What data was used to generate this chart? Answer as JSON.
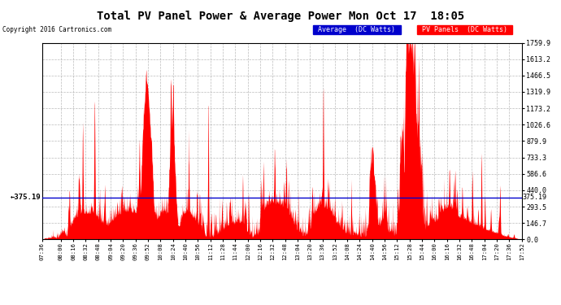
{
  "title": "Total PV Panel Power & Average Power Mon Oct 17  18:05",
  "copyright": "Copyright 2016 Cartronics.com",
  "legend_avg": "Average  (DC Watts)",
  "legend_pv": "PV Panels  (DC Watts)",
  "avg_value": 375.19,
  "y_max": 1759.9,
  "y_ticks": [
    0.0,
    146.7,
    293.5,
    440.0,
    586.6,
    733.3,
    879.9,
    1026.6,
    1173.2,
    1319.9,
    1466.5,
    1613.2,
    1759.9
  ],
  "x_labels": [
    "07:36",
    "08:00",
    "08:16",
    "08:32",
    "08:48",
    "09:04",
    "09:20",
    "09:36",
    "09:52",
    "10:08",
    "10:24",
    "10:40",
    "10:56",
    "11:12",
    "11:28",
    "11:44",
    "12:00",
    "12:16",
    "12:32",
    "12:48",
    "13:04",
    "13:20",
    "13:36",
    "13:52",
    "14:08",
    "14:24",
    "14:40",
    "14:56",
    "15:12",
    "15:28",
    "15:44",
    "16:00",
    "16:16",
    "16:32",
    "16:48",
    "17:04",
    "17:20",
    "17:36",
    "17:52"
  ],
  "bg_color": "#ffffff",
  "plot_bg_color": "#ffffff",
  "fill_color": "#ff0000",
  "avg_line_color": "#0000cc",
  "grid_color": "#aaaaaa",
  "title_color": "#000000"
}
